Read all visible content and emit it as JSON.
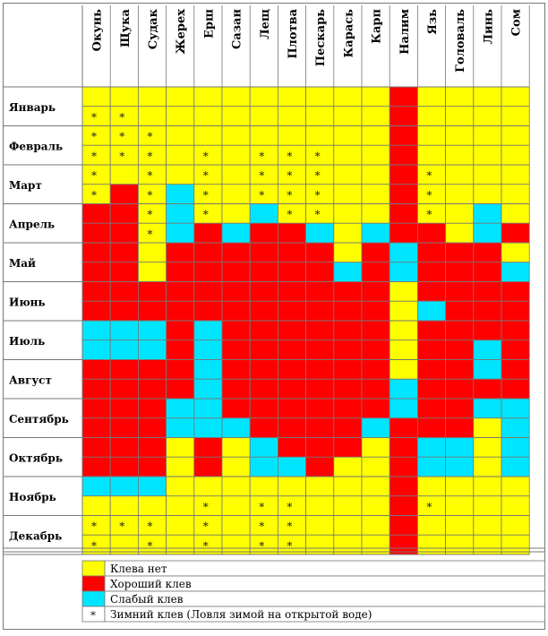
{
  "chart_data": {
    "type": "heatmap",
    "title": "",
    "species": [
      "Окунь",
      "Щука",
      "Судак",
      "Жерех",
      "Ерш",
      "Сазан",
      "Лещ",
      "Плотва",
      "Пескарь",
      "Карась",
      "Карп",
      "Налим",
      "Язь",
      "Головаль",
      "Линь",
      "Сом"
    ],
    "months": [
      "Январь",
      "Февраль",
      "Март",
      "Апрель",
      "Май",
      "Июнь",
      "Июль",
      "Август",
      "Сентябрь",
      "Октябрь",
      "Ноябрь",
      "Декабрь"
    ],
    "rows_per_month": 2,
    "cell_codes": {
      "Y": "none",
      "R": "good",
      "C": "weak"
    },
    "grid": [
      "YYYYYYYYYYYRYYYY",
      "YYYYYYYYYYYRYYYY",
      "YYYYYYYYYYYRYYYY",
      "YYYYYYYYYYYRYYYY",
      "YYYYYYYYYYYRYYYY",
      "YRYCYYYYYYYRYYYY",
      "RRYCYYCYYYYRYYCY",
      "RRYCRCRRCYCRRYCR",
      "RRYRRRRRRYRCRRRY",
      "RRYRRRRRRCRCRRRC",
      "RRRRRRRRRRRYRRRR",
      "RRRRRRRRRRRYCRRR",
      "CCCRCRRRRRRYRRRR",
      "CCCRCRRRRRRYRRCR",
      "RRRRCRRRRRRYRRCR",
      "RRRRCRRRRRRCRRRR",
      "RRRCCRRRRRRCRRCC",
      "RRRCCCRRRRCRRRYC",
      "RRRYRYCRRRYRCCYC",
      "RRRYRYCCRYYRCCYC",
      "CCCYYYYYYYYRYYYY",
      "YYYYYYYYYYYRYYYY",
      "YYYYYYYYYYYRYYYY",
      "YYYYYYYYYYYRYYYY"
    ],
    "winter_bite": [
      [
        1,
        0
      ],
      [
        1,
        1
      ],
      [
        2,
        0
      ],
      [
        2,
        1
      ],
      [
        2,
        2
      ],
      [
        3,
        0
      ],
      [
        3,
        1
      ],
      [
        3,
        2
      ],
      [
        3,
        4
      ],
      [
        3,
        6
      ],
      [
        3,
        7
      ],
      [
        3,
        8
      ],
      [
        4,
        0
      ],
      [
        4,
        2
      ],
      [
        4,
        4
      ],
      [
        4,
        6
      ],
      [
        4,
        7
      ],
      [
        4,
        8
      ],
      [
        4,
        12
      ],
      [
        5,
        0
      ],
      [
        5,
        2
      ],
      [
        5,
        4
      ],
      [
        5,
        6
      ],
      [
        5,
        7
      ],
      [
        5,
        8
      ],
      [
        5,
        12
      ],
      [
        6,
        2
      ],
      [
        6,
        4
      ],
      [
        6,
        7
      ],
      [
        6,
        8
      ],
      [
        6,
        12
      ],
      [
        7,
        2
      ],
      [
        21,
        4
      ],
      [
        21,
        6
      ],
      [
        21,
        7
      ],
      [
        21,
        12
      ],
      [
        22,
        0
      ],
      [
        22,
        1
      ],
      [
        22,
        2
      ],
      [
        22,
        4
      ],
      [
        22,
        6
      ],
      [
        22,
        7
      ],
      [
        23,
        0
      ],
      [
        23,
        2
      ],
      [
        23,
        4
      ],
      [
        23,
        6
      ],
      [
        23,
        7
      ]
    ],
    "colors": {
      "none": "#ffff00",
      "good": "#ff0000",
      "weak": "#00e5ff",
      "line": "#777777"
    },
    "legend": [
      {
        "code": "Y",
        "label": "Клева нет"
      },
      {
        "code": "R",
        "label": "Хороший клев"
      },
      {
        "code": "C",
        "label": "Слабый клев"
      },
      {
        "code": "*",
        "symbol": "*",
        "label": "Зимний клев (Ловля зимой на открытой воде)"
      }
    ]
  }
}
